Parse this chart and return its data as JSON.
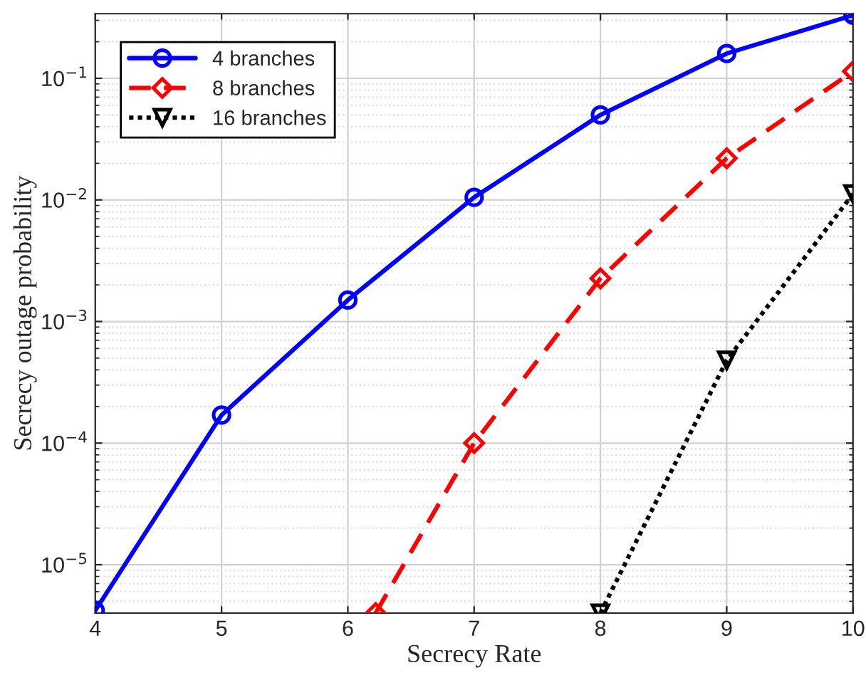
{
  "chart_data": {
    "type": "line",
    "xlabel": "Secrecy Rate",
    "ylabel": "Secrecy outage probability",
    "x": [
      4,
      5,
      6,
      7,
      8,
      9,
      10
    ],
    "series": [
      {
        "name": "4 branches",
        "color": "#0000ff",
        "marker": "circle",
        "line_style": "solid",
        "values": [
          4.2e-06,
          0.00017,
          0.0015,
          0.0105,
          0.05,
          0.16,
          0.33
        ]
      },
      {
        "name": "8 branches",
        "color": "#ff0000",
        "marker": "diamond",
        "line_style": "dashed",
        "x": [
          6.22,
          7,
          8,
          9,
          10
        ],
        "values": [
          4e-06,
          0.0001,
          0.00226,
          0.022,
          0.114
        ]
      },
      {
        "name": "16 branches",
        "color": "#000000",
        "marker": "triangle",
        "line_style": "dotted",
        "values": [
          null,
          null,
          null,
          null,
          4e-06,
          0.00048,
          0.0112
        ]
      }
    ],
    "log": "y",
    "xlim": [
      4,
      10
    ],
    "xticks": [
      4,
      5,
      6,
      7,
      8,
      9,
      10
    ],
    "ylim": [
      4e-06,
      0.34
    ],
    "yticks": [
      {
        "value": 1e-05,
        "label": "10$^{−5}$"
      },
      {
        "value": 0.0001,
        "label": "10$^{−4}$"
      },
      {
        "value": 0.001,
        "label": "10$^{−3}$"
      },
      {
        "value": 0.01,
        "label": "10$^{−2}$"
      },
      {
        "value": 0.1,
        "label": "10$^{−1}$"
      }
    ],
    "grid": true,
    "legend": "top left"
  }
}
